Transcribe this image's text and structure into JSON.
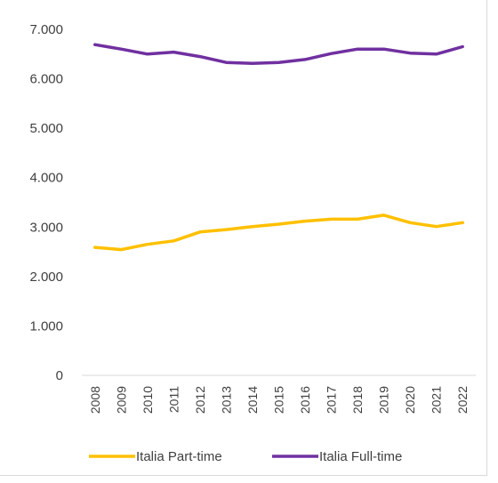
{
  "chart_data": {
    "type": "line",
    "title": "",
    "xlabel": "",
    "ylabel": "",
    "categories": [
      "2008",
      "2009",
      "2010",
      "2011",
      "2012",
      "2013",
      "2014",
      "2015",
      "2016",
      "2017",
      "2018",
      "2019",
      "2020",
      "2021",
      "2022"
    ],
    "ylim": [
      0,
      7000
    ],
    "yticks": [
      0,
      1000,
      2000,
      3000,
      4000,
      5000,
      6000,
      7000
    ],
    "ytick_labels": [
      "0",
      "1.000",
      "2.000",
      "3.000",
      "4.000",
      "5.000",
      "6.000",
      "7.000"
    ],
    "grid": false,
    "legend_position": "bottom",
    "series": [
      {
        "name": "Italia Part-time",
        "color": "#FFC000",
        "values": [
          2590,
          2545,
          2650,
          2720,
          2900,
          2950,
          3010,
          3060,
          3120,
          3160,
          3160,
          3240,
          3090,
          3010,
          3090
        ]
      },
      {
        "name": "Italia Full-time",
        "color": "#7030A0",
        "values": [
          6690,
          6600,
          6500,
          6540,
          6450,
          6330,
          6310,
          6330,
          6390,
          6510,
          6600,
          6600,
          6520,
          6500,
          6650
        ]
      }
    ]
  }
}
